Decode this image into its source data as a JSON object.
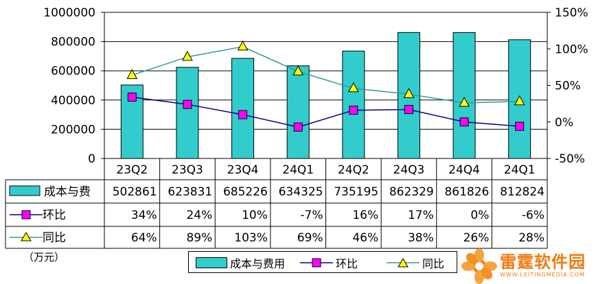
{
  "chart_data": {
    "type": "bar-line",
    "categories": [
      "23Q2",
      "23Q3",
      "23Q4",
      "24Q1",
      "24Q2",
      "24Q3",
      "24Q4",
      "24Q1"
    ],
    "bar_series": {
      "name": "成本与费用",
      "values": [
        502861,
        623831,
        685226,
        634325,
        735195,
        862329,
        861826,
        812824
      ],
      "color": "#33cccc"
    },
    "line_series": [
      {
        "name": "环比",
        "values": [
          34,
          24,
          10,
          -7,
          16,
          17,
          0,
          -6
        ],
        "color": "#000080",
        "marker_color": "#ff00ff",
        "marker": "square"
      },
      {
        "name": "同比",
        "values": [
          64,
          89,
          103,
          69,
          46,
          38,
          26,
          28
        ],
        "color": "#339999",
        "marker_color": "#ffff00",
        "marker": "triangle"
      }
    ],
    "y_left": {
      "ylim": [
        0,
        1000000
      ],
      "ticks": [
        "0",
        "200000",
        "400000",
        "600000",
        "800000",
        "1000000"
      ]
    },
    "y_right": {
      "ylim": [
        -50,
        150
      ],
      "ticks": [
        "-50%",
        "0%",
        "50%",
        "100%",
        "150%"
      ]
    },
    "table": {
      "rows": [
        {
          "label": "成本与费",
          "values": [
            "502861",
            "623831",
            "685226",
            "634325",
            "735195",
            "862329",
            "861826",
            "812824"
          ]
        },
        {
          "label": "环比",
          "values": [
            "34%",
            "24%",
            "10%",
            "-7%",
            "16%",
            "17%",
            "0%",
            "-6%"
          ]
        },
        {
          "label": "同比",
          "values": [
            "64%",
            "89%",
            "103%",
            "69%",
            "46%",
            "38%",
            "26%",
            "28%"
          ]
        }
      ]
    },
    "unit": "（万元）",
    "legend": [
      "成本与费用",
      "环比",
      "同比"
    ],
    "grid": true
  },
  "watermark": {
    "name": "雷霆软件园",
    "url": "WWW.LEITINGMEDIA.COM",
    "color": "#f07a12"
  }
}
